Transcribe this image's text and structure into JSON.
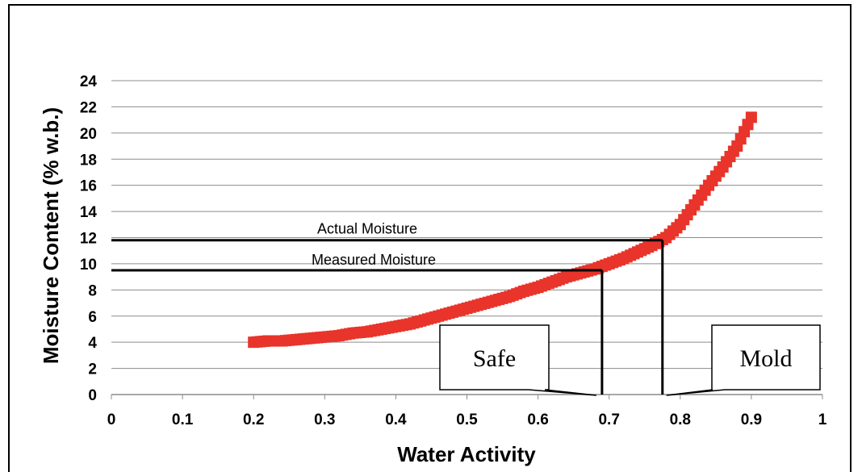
{
  "chart_data": {
    "type": "scatter",
    "title": "",
    "xlabel": "Water Activity",
    "ylabel": "Moisture Content (% w.b.)",
    "xlim": [
      0,
      1
    ],
    "ylim": [
      0,
      24
    ],
    "x_ticks": [
      "0",
      "0.1",
      "0.2",
      "0.3",
      "0.4",
      "0.5",
      "0.6",
      "0.7",
      "0.8",
      "0.9",
      "1"
    ],
    "y_ticks": [
      "0",
      "2",
      "4",
      "6",
      "8",
      "10",
      "12",
      "14",
      "16",
      "18",
      "20",
      "22",
      "24"
    ],
    "grid": "horizontal",
    "legend": "none",
    "series": [
      {
        "color": "#e8342a",
        "points": [
          {
            "x": 0.2,
            "y": 4.0
          },
          {
            "x": 0.22,
            "y": 4.1
          },
          {
            "x": 0.24,
            "y": 4.1
          },
          {
            "x": 0.26,
            "y": 4.2
          },
          {
            "x": 0.28,
            "y": 4.3
          },
          {
            "x": 0.3,
            "y": 4.4
          },
          {
            "x": 0.32,
            "y": 4.5
          },
          {
            "x": 0.34,
            "y": 4.7
          },
          {
            "x": 0.36,
            "y": 4.8
          },
          {
            "x": 0.38,
            "y": 5.0
          },
          {
            "x": 0.4,
            "y": 5.2
          },
          {
            "x": 0.42,
            "y": 5.4
          },
          {
            "x": 0.44,
            "y": 5.7
          },
          {
            "x": 0.46,
            "y": 6.0
          },
          {
            "x": 0.48,
            "y": 6.3
          },
          {
            "x": 0.5,
            "y": 6.6
          },
          {
            "x": 0.52,
            "y": 6.9
          },
          {
            "x": 0.54,
            "y": 7.2
          },
          {
            "x": 0.56,
            "y": 7.5
          },
          {
            "x": 0.58,
            "y": 7.9
          },
          {
            "x": 0.6,
            "y": 8.2
          },
          {
            "x": 0.62,
            "y": 8.6
          },
          {
            "x": 0.64,
            "y": 9.0
          },
          {
            "x": 0.66,
            "y": 9.3
          },
          {
            "x": 0.68,
            "y": 9.6
          },
          {
            "x": 0.7,
            "y": 10.0
          },
          {
            "x": 0.72,
            "y": 10.4
          },
          {
            "x": 0.74,
            "y": 10.9
          },
          {
            "x": 0.76,
            "y": 11.4
          },
          {
            "x": 0.78,
            "y": 12.0
          },
          {
            "x": 0.8,
            "y": 13.0
          },
          {
            "x": 0.82,
            "y": 14.5
          },
          {
            "x": 0.84,
            "y": 16.0
          },
          {
            "x": 0.86,
            "y": 17.4
          },
          {
            "x": 0.88,
            "y": 19.0
          },
          {
            "x": 0.9,
            "y": 21.2
          }
        ]
      }
    ],
    "annotations": {
      "actual": {
        "label": "Actual Moisture",
        "y": 11.8,
        "x": 0.775
      },
      "measured": {
        "label": "Measured Moisture",
        "y": 9.5,
        "x": 0.69
      },
      "safe": {
        "label": "Safe",
        "x": 0.69
      },
      "mold": {
        "label": "Mold",
        "x": 0.775
      }
    }
  }
}
